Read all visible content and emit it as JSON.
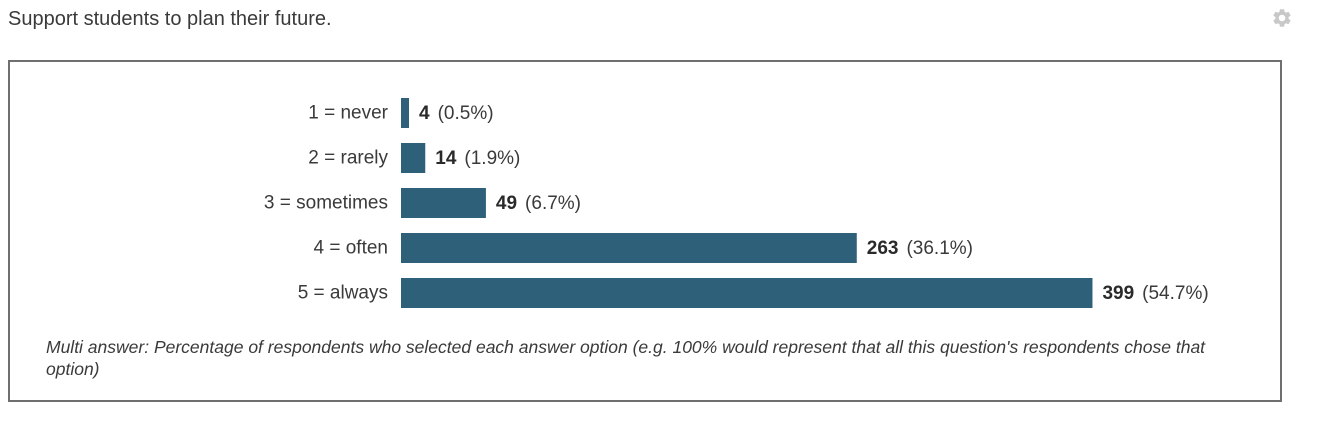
{
  "question": {
    "title": "Support students to plan their future."
  },
  "icons": {
    "settings": "gear-icon"
  },
  "colors": {
    "bar": "#2e6179",
    "border": "#6f6f6f",
    "gear": "#c8c8c8"
  },
  "chart_data": {
    "type": "bar",
    "orientation": "horizontal",
    "categories": [
      "1 = never",
      "2 = rarely",
      "3 = sometimes",
      "4 = often",
      "5 = always"
    ],
    "values": [
      4,
      14,
      49,
      263,
      399
    ],
    "percent_labels": [
      "(0.5%)",
      "(1.9%)",
      "(6.7%)",
      "(36.1%)",
      "(54.7%)"
    ],
    "grid": false,
    "legend": "none"
  },
  "footnote": "Multi answer: Percentage of respondents who selected each answer option (e.g. 100% would represent that all this question's respondents chose that option)"
}
